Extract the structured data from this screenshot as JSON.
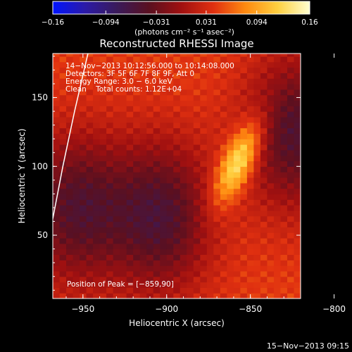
{
  "colors": {
    "background": "#000000",
    "text": "#ffffff",
    "colorbar_stops": [
      "#0014ff",
      "#2b1aa8",
      "#3a1a5a",
      "#5a1020",
      "#a01010",
      "#e03010",
      "#ff8a10",
      "#ffd040",
      "#ffffd0"
    ]
  },
  "colorbar": {
    "min": -0.16,
    "max": 0.16,
    "ticks": [
      -0.16,
      -0.094,
      -0.031,
      0.031,
      0.094,
      0.16
    ],
    "tick_labels": [
      "−0.16",
      "−0.094",
      "−0.031",
      "0.031",
      "0.094",
      "0.16"
    ],
    "units": "(photons cm⁻² s⁻¹ asec⁻²)"
  },
  "chart_data": {
    "type": "heatmap",
    "title": "Reconstructed RHESSI Image",
    "xlabel": "Heliocentric X (arcsec)",
    "ylabel": "Heliocentric Y (arcsec)",
    "xlim": [
      -968,
      -820
    ],
    "ylim": [
      4,
      182
    ],
    "xticks": [
      -950,
      -900,
      -850,
      -800
    ],
    "xtick_labels": [
      "−950",
      "−900",
      "−850",
      "−800"
    ],
    "yticks": [
      50,
      100,
      150
    ],
    "ytick_labels": [
      "50",
      "100",
      "150"
    ],
    "annotation_lines": [
      "14−Nov−2013 10:12:56.000 to 10:14:08.000",
      "Detectors: 3F 5F 6F 7F 8F 9F, Att 0",
      "Energy Range: 3.0 − 6.0 keV",
      "Clean    Total counts: 1.12E+04"
    ],
    "peak_label": "Position of Peak = [−859,90]",
    "peak": {
      "x": -859,
      "y": 90,
      "value": 0.16
    },
    "features": [
      {
        "kind": "source",
        "x": -857,
        "y": 104,
        "value": 0.16
      },
      {
        "kind": "negative",
        "x": -903,
        "y": 64,
        "value": -0.05
      },
      {
        "kind": "negative",
        "x": -823,
        "y": 125,
        "value": -0.05
      },
      {
        "kind": "negative",
        "x": -955,
        "y": 70,
        "value": -0.045
      }
    ],
    "limb_curve": [
      {
        "x": -947,
        "y": 182
      },
      {
        "x": -955,
        "y": 140
      },
      {
        "x": -962,
        "y": 100
      },
      {
        "x": -968,
        "y": 62
      }
    ]
  },
  "footer": {
    "timestamp": "15−Nov−2013 09:15"
  }
}
